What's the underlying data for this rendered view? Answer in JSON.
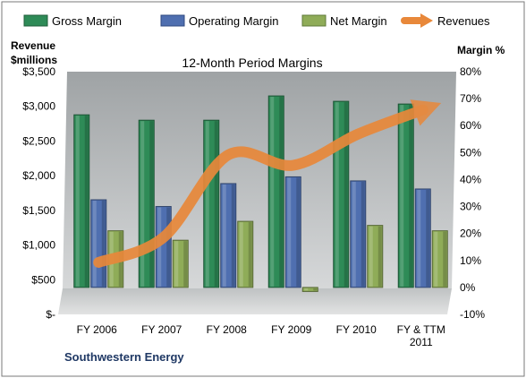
{
  "chart_data": {
    "type": "bar",
    "title": "12-Month Period Margins",
    "left_axis_label": [
      "Revenue",
      "$millions"
    ],
    "right_axis_label": "Margin %",
    "footer": "Southwestern Energy",
    "categories": [
      [
        "FY 2006"
      ],
      [
        "FY 2007"
      ],
      [
        "FY 2008"
      ],
      [
        "FY 2009"
      ],
      [
        "FY 2010"
      ],
      [
        "FY & TTM",
        "2011"
      ]
    ],
    "left_axis": {
      "min": 0,
      "max": 3500,
      "step": 500,
      "tick_labels": [
        "$-",
        "$500",
        "$1,000",
        "$1,500",
        "$2,000",
        "$2,500",
        "$3,000",
        "$3,500"
      ]
    },
    "right_axis": {
      "min": -10,
      "max": 80,
      "step": 10,
      "tick_labels": [
        "-10%",
        "0%",
        "10%",
        "20%",
        "30%",
        "40%",
        "50%",
        "60%",
        "70%",
        "80%"
      ]
    },
    "series": [
      {
        "name": "Gross Margin",
        "axis": "right",
        "kind": "bar",
        "color": "#2e8b57",
        "values": [
          64,
          62,
          62,
          71,
          69,
          68
        ]
      },
      {
        "name": "Operating Margin",
        "axis": "right",
        "kind": "bar",
        "color": "#4f6fb0",
        "values": [
          32.5,
          30,
          38.5,
          41,
          39.5,
          36.5
        ]
      },
      {
        "name": "Net Margin",
        "axis": "right",
        "kind": "bar",
        "color": "#8fac58",
        "values": [
          21,
          17.5,
          24.5,
          -1.5,
          23,
          21
        ]
      },
      {
        "name": "Revenues",
        "axis": "left",
        "kind": "line",
        "color": "#e8883a",
        "values": [
          750,
          1110,
          2300,
          2150,
          2600,
          2950
        ]
      }
    ],
    "legend_position": "top",
    "grid": false
  }
}
